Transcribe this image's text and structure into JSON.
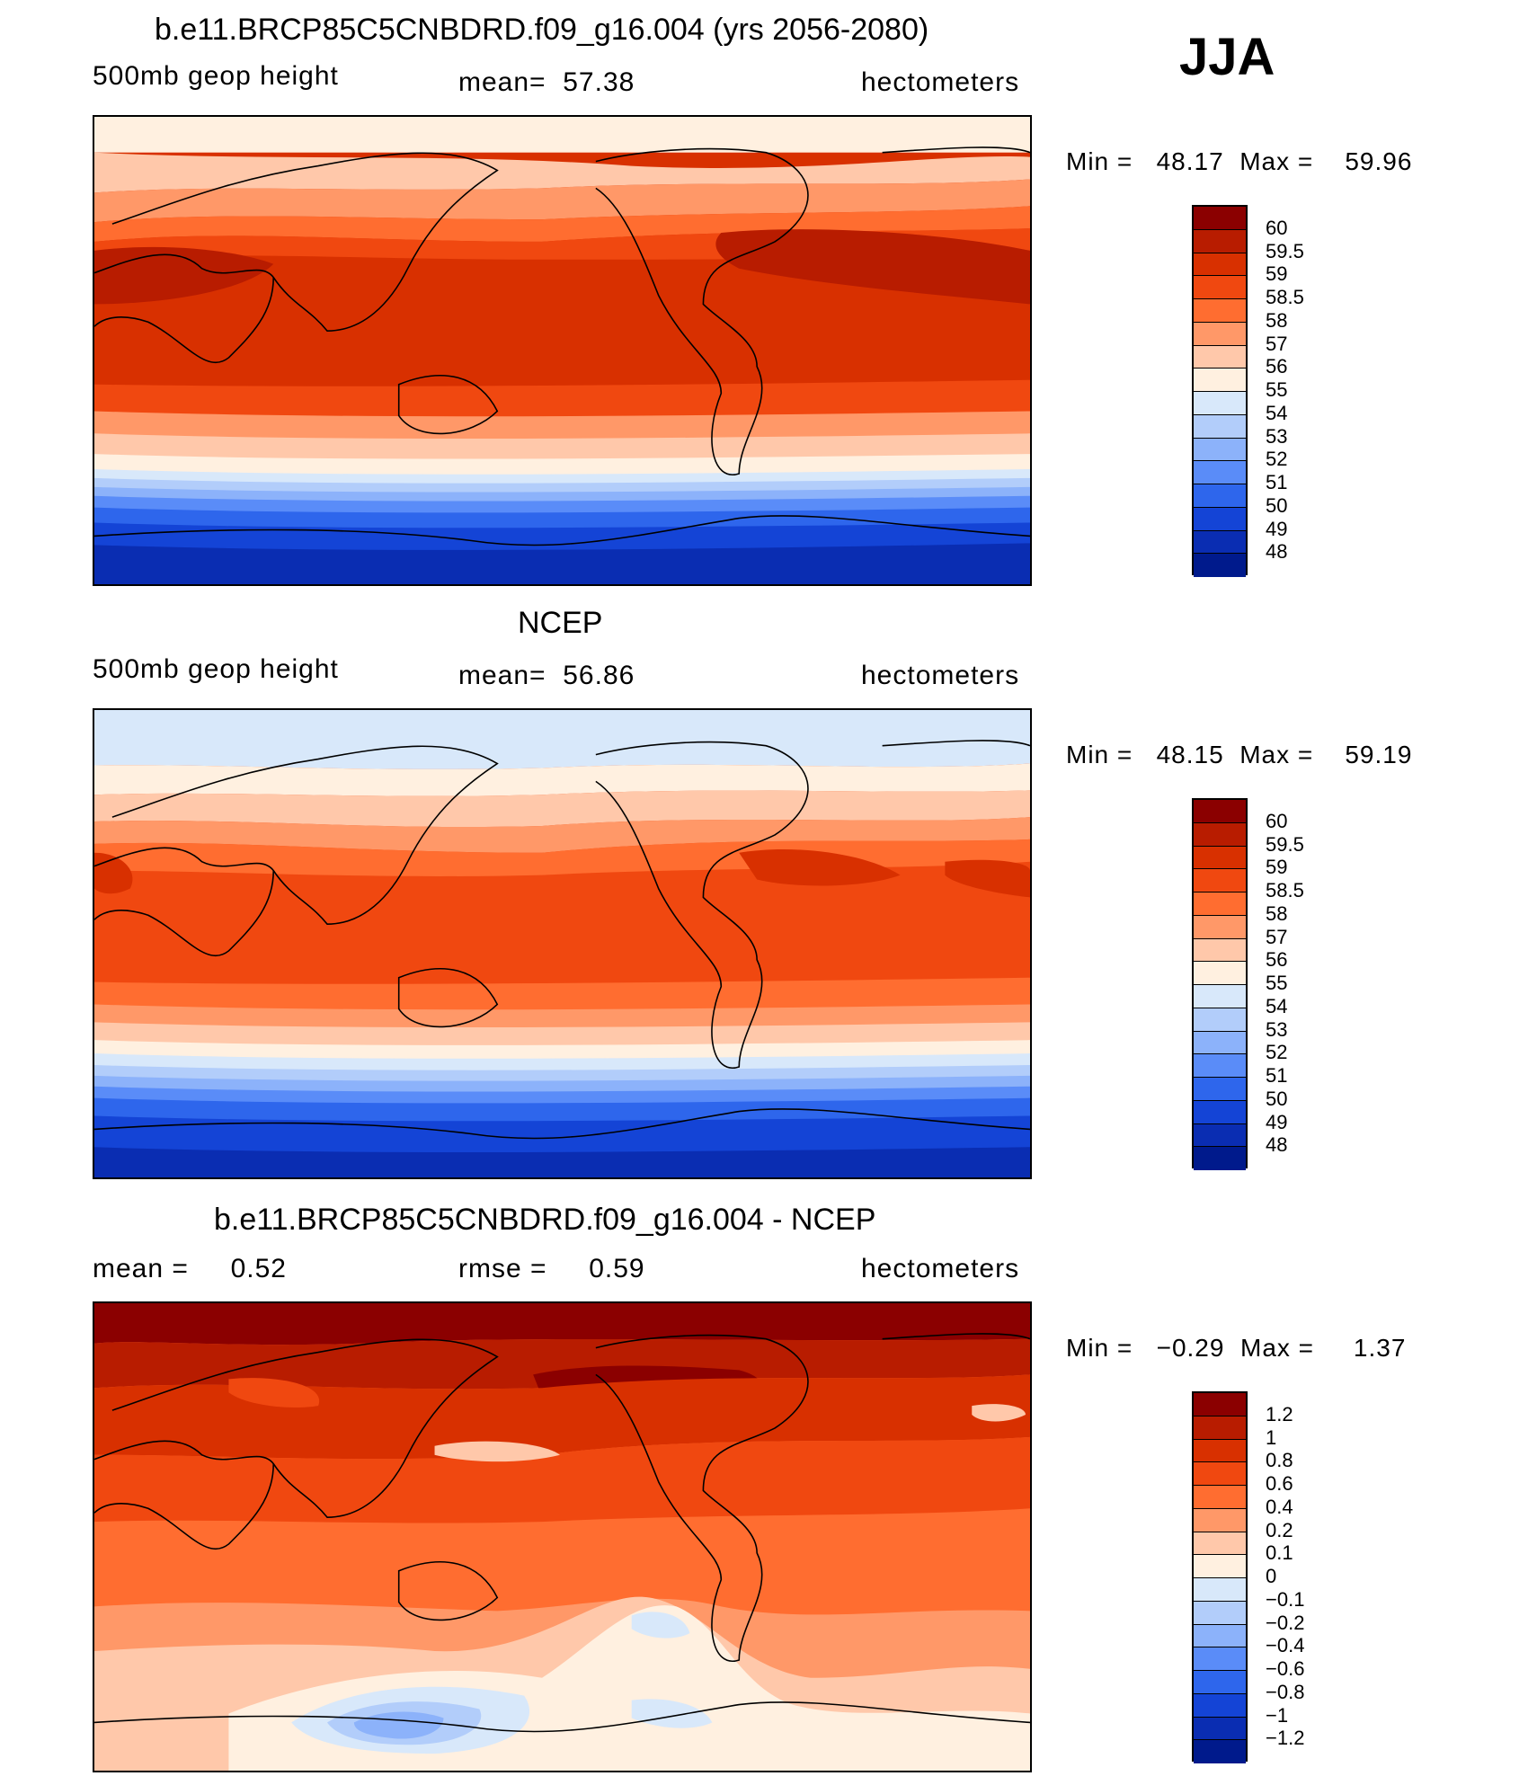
{
  "season": "JJA",
  "units": "hectometers",
  "panels": [
    {
      "title": "b.e11.BRCP85C5CNBDRD.f09_g16.004 (yrs 2056-2080)",
      "variable": "500mb geop height",
      "left_stat": "",
      "mean_text": "mean=  57.38",
      "units": "hectometers",
      "min_max": "Min =   48.17  Max =    59.96",
      "levels": [
        "60",
        "59.5",
        "59",
        "58.5",
        "58",
        "57",
        "56",
        "55",
        "54",
        "53",
        "52",
        "51",
        "50",
        "49",
        "48"
      ],
      "colors": [
        "#8b0000",
        "#b81c00",
        "#d83000",
        "#f04810",
        "#ff6d30",
        "#ff9868",
        "#ffc8aa",
        "#fff0e0",
        "#d8e8fa",
        "#b2cdfa",
        "#8cb2fa",
        "#5a8cf8",
        "#2e66ec",
        "#1444d6",
        "#0a2db2",
        "#001a8c"
      ]
    },
    {
      "title": "NCEP",
      "variable": "500mb geop height",
      "left_stat": "",
      "mean_text": "mean=  56.86",
      "units": "hectometers",
      "min_max": "Min =   48.15  Max =    59.19",
      "levels": [
        "60",
        "59.5",
        "59",
        "58.5",
        "58",
        "57",
        "56",
        "55",
        "54",
        "53",
        "52",
        "51",
        "50",
        "49",
        "48"
      ],
      "colors": [
        "#8b0000",
        "#b81c00",
        "#d83000",
        "#f04810",
        "#ff6d30",
        "#ff9868",
        "#ffc8aa",
        "#fff0e0",
        "#d8e8fa",
        "#b2cdfa",
        "#8cb2fa",
        "#5a8cf8",
        "#2e66ec",
        "#1444d6",
        "#0a2db2",
        "#001a8c"
      ]
    },
    {
      "title": "b.e11.BRCP85C5CNBDRD.f09_g16.004 - NCEP",
      "variable": "",
      "left_stat": "mean =     0.52",
      "mean_text": "rmse =     0.59",
      "units": "hectometers",
      "min_max": "Min =   −0.29  Max =     1.37",
      "levels": [
        "1.2",
        "1",
        "0.8",
        "0.6",
        "0.4",
        "0.2",
        "0.1",
        "0",
        "−0.1",
        "−0.2",
        "−0.4",
        "−0.6",
        "−0.8",
        "−1",
        "−1.2"
      ],
      "colors": [
        "#8b0000",
        "#b81c00",
        "#d83000",
        "#f04810",
        "#ff6d30",
        "#ff9868",
        "#ffc8aa",
        "#fff0e0",
        "#d8e8fa",
        "#b2cdfa",
        "#8cb2fa",
        "#5a8cf8",
        "#2e66ec",
        "#1444d6",
        "#0a2db2",
        "#001a8c"
      ]
    }
  ]
}
